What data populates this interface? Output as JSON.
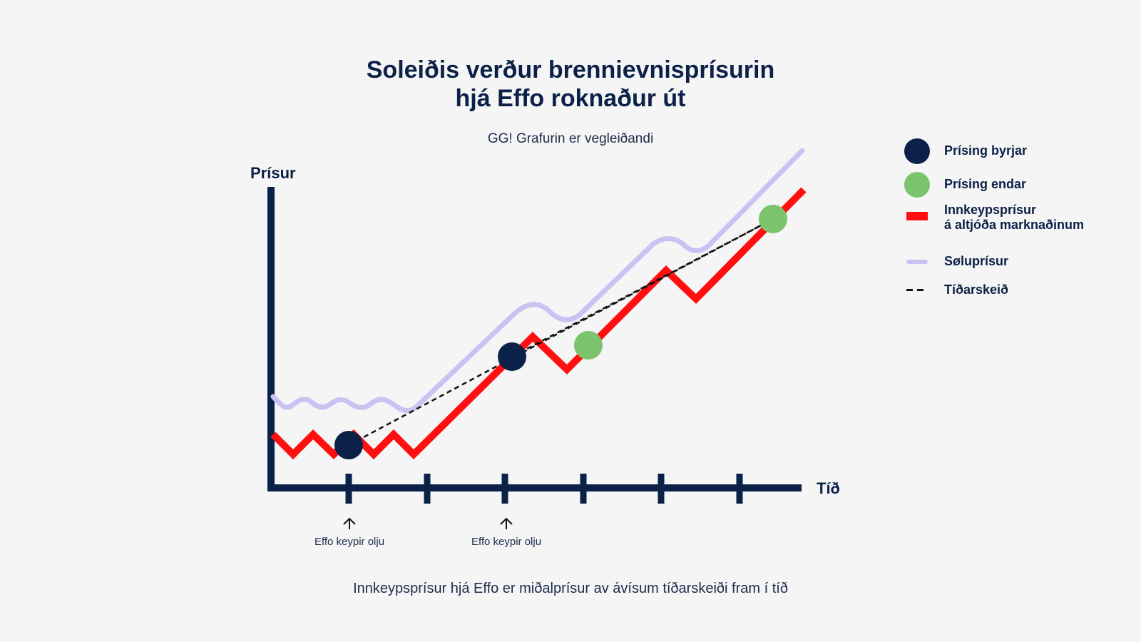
{
  "title_line1": "Soleiðis verður brennievnisprísurin",
  "title_line2": "hjá Effo roknaður út",
  "subtitle": "GG! Grafurin er vegleiðandi",
  "footer": "Innkeypsprísur hjá Effo er miðalprísur av ávísum tíðarskeiði fram í tíð",
  "axes": {
    "y_label": "Prísur",
    "x_label": "Tíð"
  },
  "annotations": [
    {
      "text": "Effo keypir olju"
    },
    {
      "text": "Effo keypir olju"
    }
  ],
  "legend": [
    {
      "label": "Prísing byrjar",
      "color": "#0b2147",
      "swatch": "dot"
    },
    {
      "label": "Prísing endar",
      "color": "#7cc36e",
      "swatch": "dot"
    },
    {
      "label": "Innkeypsprísur",
      "label2": "á altjóða marknaðinum",
      "color": "#ff0f0f",
      "swatch": "bar"
    },
    {
      "label": "Søluprísur",
      "color": "#c8c3f3",
      "swatch": "line"
    },
    {
      "label": "Tíðarskeið",
      "color": "#111111",
      "swatch": "dash"
    }
  ],
  "colors": {
    "background": "#f5f5f5",
    "axis": "#0b2147",
    "purchase_price": "#ff0f0f",
    "sale_price": "#c8c3f3",
    "start_marker": "#0b2147",
    "end_marker": "#7cc36e",
    "period_line": "#111111"
  }
}
